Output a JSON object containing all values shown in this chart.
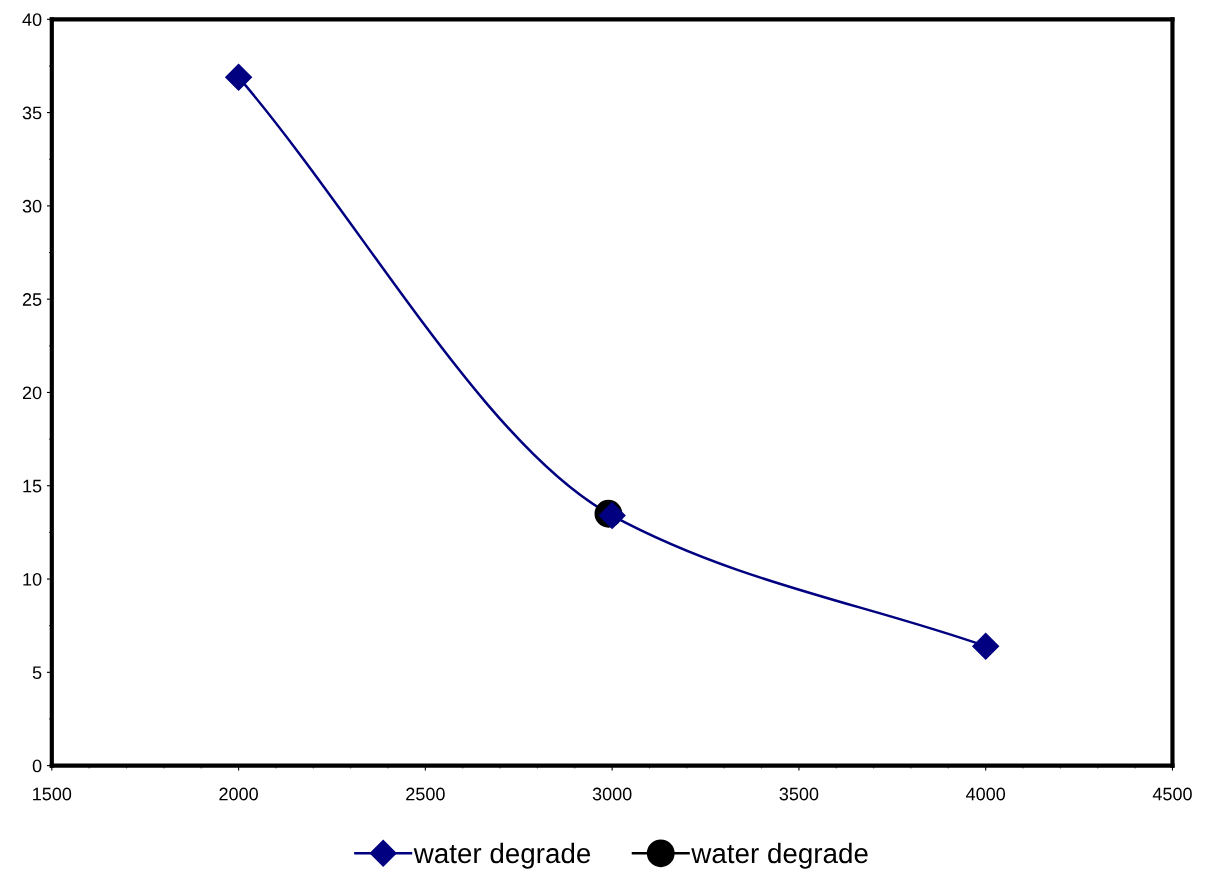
{
  "chart_data": {
    "type": "line",
    "series": [
      {
        "name": "water degrade",
        "color": "#000080",
        "x": [
          2000,
          3000,
          4000
        ],
        "values": [
          36.9,
          13.4,
          6.4
        ],
        "marker": "diamond"
      },
      {
        "name": "water degrade",
        "color": "#000000",
        "x": [
          2990
        ],
        "values": [
          13.5
        ],
        "marker": "circle",
        "type": "scatter"
      }
    ],
    "xlim": [
      1500,
      4500
    ],
    "xticks": [
      1500,
      2000,
      2500,
      3000,
      3500,
      4000,
      4500
    ],
    "ylim": [
      0,
      40
    ],
    "yticks": [
      0,
      5,
      10,
      15,
      20,
      25,
      30,
      35,
      40
    ],
    "grid": false,
    "legend": "bottom"
  }
}
